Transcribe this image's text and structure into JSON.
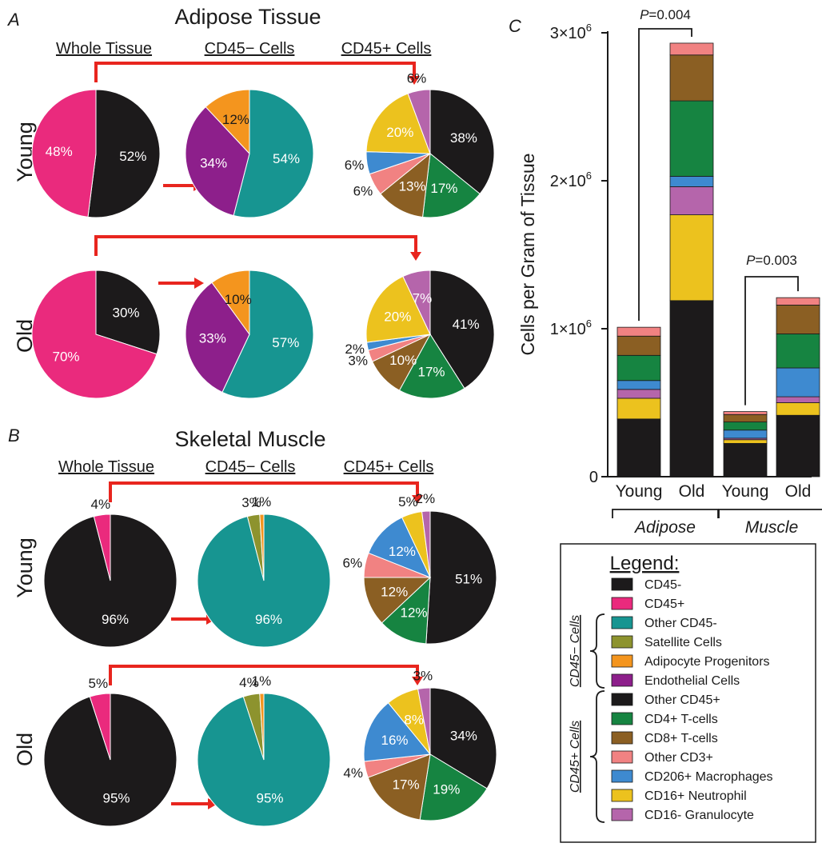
{
  "colors": {
    "CD45-": "#1c1a1b",
    "CD45+": "#ea2a7d",
    "Other CD45-": "#179591",
    "Satellite Cells": "#8d932e",
    "Adipocyte Progenitors": "#f4951e",
    "Endothelial Cells": "#8d1f8b",
    "Other CD45+": "#1c1a1b",
    "CD4+ T-cells": "#168441",
    "CD8+ T-cells": "#8b5f23",
    "Other CD3+": "#f18282",
    "CD206+ Macrophages": "#3e8ad0",
    "CD16+ Neutrophil": "#ecc21e",
    "CD16- Granulocyte": "#b565ab",
    "arrow": "#e8251e"
  },
  "panelA": {
    "letter": "A",
    "title": "Adipose Tissue",
    "columns": [
      "Whole Tissue",
      "CD45− Cells",
      "CD45+ Cells"
    ],
    "rows": [
      "Young",
      "Old"
    ]
  },
  "panelB": {
    "letter": "B",
    "title": "Skeletal Muscle",
    "columns": [
      "Whole Tissue",
      "CD45− Cells",
      "CD45+ Cells"
    ],
    "rows": [
      "Young",
      "Old"
    ]
  },
  "panelC": {
    "letter": "C"
  },
  "chart_data": [
    {
      "type": "pie",
      "panel": "A",
      "tissue": "Adipose Tissue",
      "age": "Young",
      "column": "Whole Tissue",
      "slices": [
        {
          "category": "CD45-",
          "value": 52,
          "label": "52%"
        },
        {
          "category": "CD45+",
          "value": 48,
          "label": "48%"
        }
      ]
    },
    {
      "type": "pie",
      "panel": "A",
      "tissue": "Adipose Tissue",
      "age": "Young",
      "column": "CD45− Cells",
      "slices": [
        {
          "category": "Other CD45-",
          "value": 54,
          "label": "54%"
        },
        {
          "category": "Endothelial Cells",
          "value": 34,
          "label": "34%"
        },
        {
          "category": "Adipocyte Progenitors",
          "value": 12,
          "label": "12%"
        }
      ]
    },
    {
      "type": "pie",
      "panel": "A",
      "tissue": "Adipose Tissue",
      "age": "Young",
      "column": "CD45+ Cells",
      "slices": [
        {
          "category": "Other CD45+",
          "value": 38,
          "label": "38%"
        },
        {
          "category": "CD4+ T-cells",
          "value": 17,
          "label": "17%"
        },
        {
          "category": "CD8+ T-cells",
          "value": 13,
          "label": "13%"
        },
        {
          "category": "Other CD3+",
          "value": 6,
          "label": "6%"
        },
        {
          "category": "CD206+ Macrophages",
          "value": 6,
          "label": "6%"
        },
        {
          "category": "CD16+ Neutrophil",
          "value": 20,
          "label": "20%"
        },
        {
          "category": "CD16- Granulocyte",
          "value": 6,
          "label": "6%"
        }
      ]
    },
    {
      "type": "pie",
      "panel": "A",
      "tissue": "Adipose Tissue",
      "age": "Old",
      "column": "Whole Tissue",
      "slices": [
        {
          "category": "CD45-",
          "value": 30,
          "label": "30%"
        },
        {
          "category": "CD45+",
          "value": 70,
          "label": "70%"
        }
      ]
    },
    {
      "type": "pie",
      "panel": "A",
      "tissue": "Adipose Tissue",
      "age": "Old",
      "column": "CD45− Cells",
      "slices": [
        {
          "category": "Other CD45-",
          "value": 57,
          "label": "57%"
        },
        {
          "category": "Endothelial Cells",
          "value": 33,
          "label": "33%"
        },
        {
          "category": "Adipocyte Progenitors",
          "value": 10,
          "label": "10%"
        }
      ]
    },
    {
      "type": "pie",
      "panel": "A",
      "tissue": "Adipose Tissue",
      "age": "Old",
      "column": "CD45+ Cells",
      "slices": [
        {
          "category": "Other CD45+",
          "value": 41,
          "label": "41%"
        },
        {
          "category": "CD4+ T-cells",
          "value": 17,
          "label": "17%"
        },
        {
          "category": "CD8+ T-cells",
          "value": 10,
          "label": "10%"
        },
        {
          "category": "Other CD3+",
          "value": 3,
          "label": "3%"
        },
        {
          "category": "CD206+ Macrophages",
          "value": 2,
          "label": "2%"
        },
        {
          "category": "CD16+ Neutrophil",
          "value": 20,
          "label": "20%"
        },
        {
          "category": "CD16- Granulocyte",
          "value": 7,
          "label": "7%"
        }
      ]
    },
    {
      "type": "pie",
      "panel": "B",
      "tissue": "Skeletal Muscle",
      "age": "Young",
      "column": "Whole Tissue",
      "slices": [
        {
          "category": "CD45-",
          "value": 96,
          "label": "96%"
        },
        {
          "category": "CD45+",
          "value": 4,
          "label": "4%"
        }
      ]
    },
    {
      "type": "pie",
      "panel": "B",
      "tissue": "Skeletal Muscle",
      "age": "Young",
      "column": "CD45− Cells",
      "slices": [
        {
          "category": "Other CD45-",
          "value": 96,
          "label": "96%"
        },
        {
          "category": "Satellite Cells",
          "value": 3,
          "label": "3%"
        },
        {
          "category": "Adipocyte Progenitors",
          "value": 1,
          "label": "1%"
        }
      ]
    },
    {
      "type": "pie",
      "panel": "B",
      "tissue": "Skeletal Muscle",
      "age": "Young",
      "column": "CD45+ Cells",
      "slices": [
        {
          "category": "Other CD45+",
          "value": 51,
          "label": "51%"
        },
        {
          "category": "CD4+ T-cells",
          "value": 12,
          "label": "12%"
        },
        {
          "category": "CD8+ T-cells",
          "value": 12,
          "label": "12%"
        },
        {
          "category": "Other CD3+",
          "value": 6,
          "label": "6%"
        },
        {
          "category": "CD206+ Macrophages",
          "value": 12,
          "label": "12%"
        },
        {
          "category": "CD16+ Neutrophil",
          "value": 5,
          "label": "5%"
        },
        {
          "category": "CD16- Granulocyte",
          "value": 2,
          "label": "2%"
        }
      ]
    },
    {
      "type": "pie",
      "panel": "B",
      "tissue": "Skeletal Muscle",
      "age": "Old",
      "column": "Whole Tissue",
      "slices": [
        {
          "category": "CD45-",
          "value": 95,
          "label": "95%"
        },
        {
          "category": "CD45+",
          "value": 5,
          "label": "5%"
        }
      ]
    },
    {
      "type": "pie",
      "panel": "B",
      "tissue": "Skeletal Muscle",
      "age": "Old",
      "column": "CD45− Cells",
      "slices": [
        {
          "category": "Other CD45-",
          "value": 95,
          "label": "95%"
        },
        {
          "category": "Satellite Cells",
          "value": 4,
          "label": "4%"
        },
        {
          "category": "Adipocyte Progenitors",
          "value": 1,
          "label": "1%"
        }
      ]
    },
    {
      "type": "pie",
      "panel": "B",
      "tissue": "Skeletal Muscle",
      "age": "Old",
      "column": "CD45+ Cells",
      "slices": [
        {
          "category": "Other CD45+",
          "value": 34,
          "label": "34%"
        },
        {
          "category": "CD4+ T-cells",
          "value": 19,
          "label": "19%"
        },
        {
          "category": "CD8+ T-cells",
          "value": 17,
          "label": "17%"
        },
        {
          "category": "Other CD3+",
          "value": 4,
          "label": "4%"
        },
        {
          "category": "CD206+ Macrophages",
          "value": 16,
          "label": "16%"
        },
        {
          "category": "CD16+ Neutrophil",
          "value": 8,
          "label": "8%"
        },
        {
          "category": "CD16- Granulocyte",
          "value": 3,
          "label": "3%"
        }
      ]
    },
    {
      "type": "bar",
      "stacked": true,
      "panel": "C",
      "categories": [
        "Young",
        "Old",
        "Young",
        "Old"
      ],
      "groups": [
        {
          "label": "Adipose",
          "categories": [
            0,
            1
          ]
        },
        {
          "label": "Muscle",
          "categories": [
            2,
            3
          ]
        }
      ],
      "ylabel": "Cells per Gram of Tissue",
      "ylim": [
        0,
        3000000
      ],
      "yticks": [
        {
          "value": 0,
          "label": "0"
        },
        {
          "value": 1000000,
          "label": "1×10",
          "exp": "6"
        },
        {
          "value": 2000000,
          "label": "2×10",
          "exp": "6"
        },
        {
          "value": 3000000,
          "label": "3×10",
          "exp": "6"
        }
      ],
      "series": [
        {
          "name": "Other CD45+",
          "values": [
            390000,
            1190000,
            225000,
            415000
          ]
        },
        {
          "name": "CD16+ Neutrophil",
          "values": [
            140000,
            580000,
            25000,
            85000
          ]
        },
        {
          "name": "CD16- Granulocyte",
          "values": [
            60000,
            190000,
            10000,
            40000
          ]
        },
        {
          "name": "CD206+ Macrophages",
          "values": [
            60000,
            70000,
            55000,
            195000
          ]
        },
        {
          "name": "CD4+ T-cells",
          "values": [
            170000,
            510000,
            55000,
            230000
          ]
        },
        {
          "name": "CD8+ T-cells",
          "values": [
            130000,
            310000,
            50000,
            195000
          ]
        },
        {
          "name": "Other CD3+",
          "values": [
            60000,
            80000,
            20000,
            50000
          ]
        }
      ],
      "comparisons": [
        {
          "between": [
            0,
            1
          ],
          "p_label": "P",
          "p_value": "=0.004"
        },
        {
          "between": [
            2,
            3
          ],
          "p_label": "P",
          "p_value": "=0.003"
        }
      ]
    }
  ],
  "legend": {
    "title": "Legend:",
    "items": [
      {
        "category": "CD45-",
        "label": "CD45-"
      },
      {
        "category": "CD45+",
        "label": "CD45+"
      },
      {
        "category": "Other CD45-",
        "label": "Other CD45-"
      },
      {
        "category": "Satellite Cells",
        "label": "Satellite Cells"
      },
      {
        "category": "Adipocyte Progenitors",
        "label": "Adipocyte Progenitors"
      },
      {
        "category": "Endothelial Cells",
        "label": "Endothelial Cells"
      },
      {
        "category": "Other CD45+",
        "label": "Other CD45+"
      },
      {
        "category": "CD4+ T-cells",
        "label": "CD4+ T-cells"
      },
      {
        "category": "CD8+ T-cells",
        "label": "CD8+ T-cells"
      },
      {
        "category": "Other CD3+",
        "label": "Other CD3+"
      },
      {
        "category": "CD206+ Macrophages",
        "label": "CD206+ Macrophages"
      },
      {
        "category": "CD16+ Neutrophil",
        "label": "CD16+ Neutrophil"
      },
      {
        "category": "CD16- Granulocyte",
        "label": "CD16- Granulocyte"
      }
    ],
    "groups": [
      {
        "label": "CD45− Cells",
        "first": 2,
        "last": 5
      },
      {
        "label": "CD45+ Cells",
        "first": 6,
        "last": 12
      }
    ]
  }
}
